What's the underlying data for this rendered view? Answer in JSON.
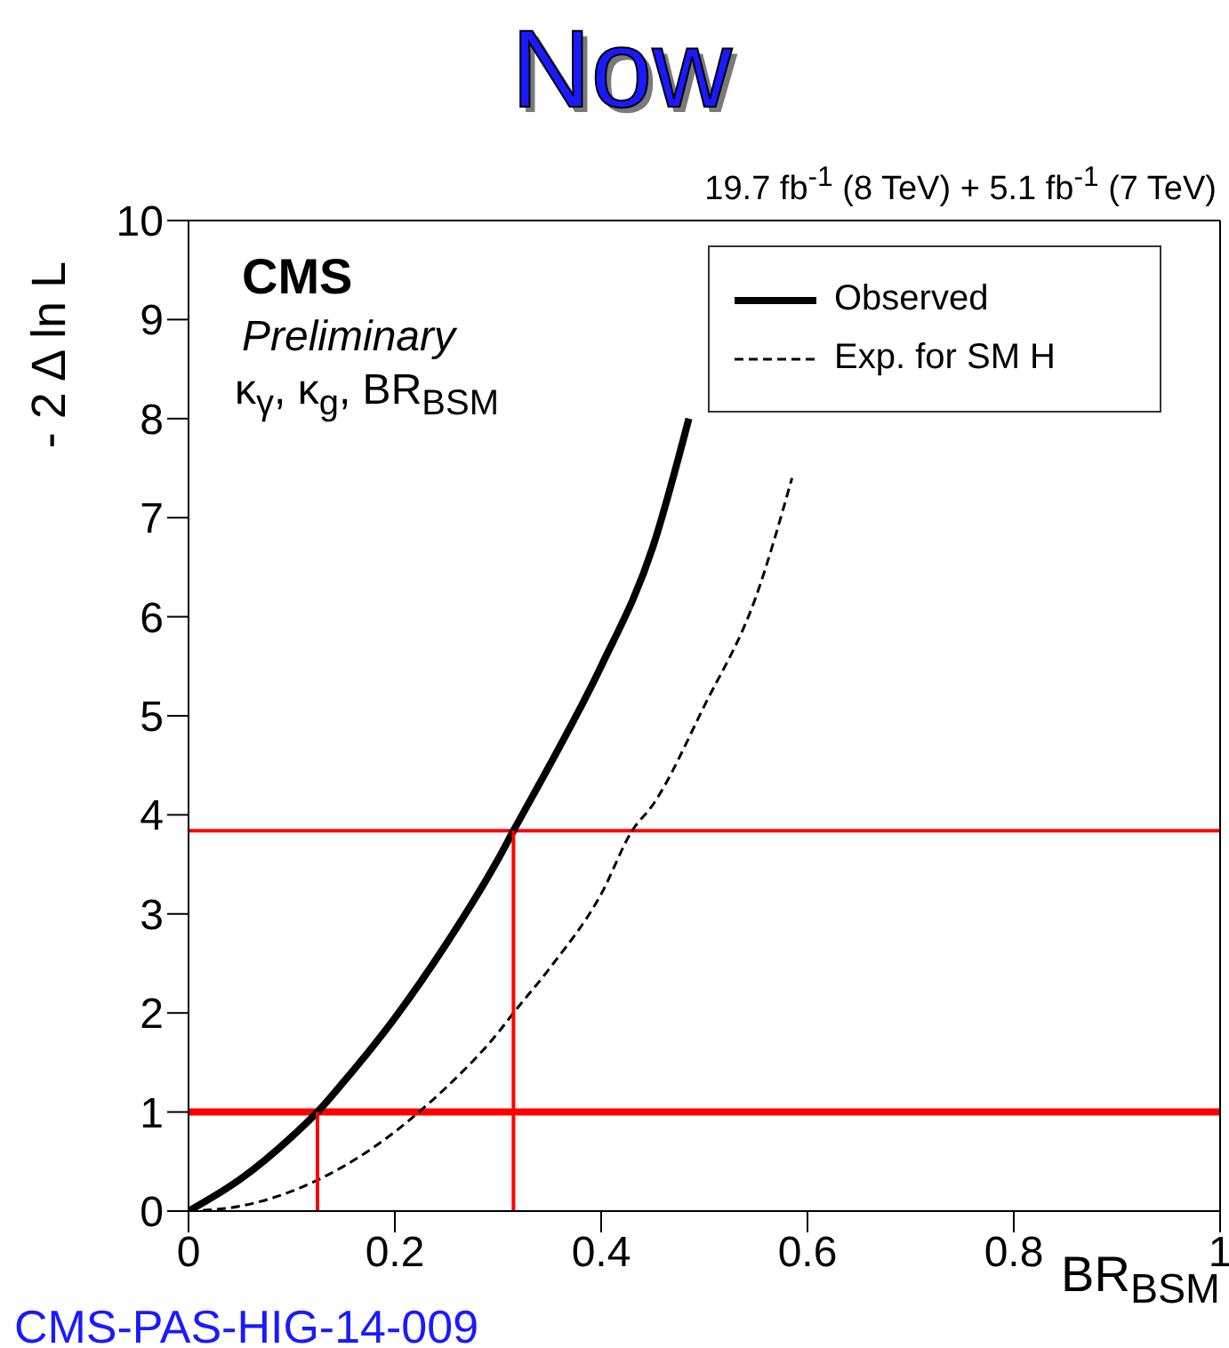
{
  "chart_data": {
    "type": "line",
    "title": "Now",
    "subtitle": "19.7 fb$^{-1}$ (8 TeV) +  5.1 fb$^{-1}$ (7 TeV)",
    "xlabel": "BR$_{BSM}$",
    "ylabel": "- 2 Δ ln L",
    "annotations": [
      "CMS",
      "Preliminary",
      "κ$_{γ}$, κ$_{g}$, BR$_{BSM}$",
      "CMS-PAS-HIG-14-009"
    ],
    "series": [
      {
        "name": "Observed",
        "color": "#000000",
        "line_style": "solid",
        "x": [
          0,
          0.05,
          0.1,
          0.125,
          0.15,
          0.2,
          0.25,
          0.3,
          0.315,
          0.35,
          0.4,
          0.45,
          0.485
        ],
        "values": [
          0,
          0.32,
          0.75,
          1,
          1.3,
          1.95,
          2.7,
          3.55,
          3.84,
          4.5,
          5.5,
          6.7,
          8
        ]
      },
      {
        "name": "Exp. for SM H",
        "color": "#000000",
        "line_style": "dashed",
        "x": [
          0,
          0.05,
          0.1,
          0.15,
          0.2,
          0.22,
          0.25,
          0.3,
          0.315,
          0.35,
          0.4,
          0.43,
          0.45,
          0.5,
          0.55,
          0.585
        ],
        "values": [
          0,
          0.05,
          0.2,
          0.45,
          0.8,
          0.97,
          1.25,
          1.8,
          2,
          2.45,
          3.2,
          3.84,
          4.1,
          5.1,
          6.2,
          7.4
        ]
      },
      {
        "color": "#ff0000",
        "line_style": "solid",
        "x": [
          0.125,
          0.125
        ],
        "values": [
          0,
          1
        ]
      },
      {
        "color": "#ff0000",
        "line_style": "solid",
        "x": [
          0.315,
          0.315
        ],
        "values": [
          0,
          3.84
        ]
      }
    ],
    "ref_lines": [
      {
        "axis": "y",
        "value": 1,
        "color": "#ff0000"
      },
      {
        "axis": "y",
        "value": 3.84,
        "color": "#ff0000"
      }
    ],
    "xlim": [
      0,
      1
    ],
    "xticks": [
      0,
      0.2,
      0.4,
      0.6,
      0.8,
      1
    ],
    "ylim": [
      0,
      10
    ],
    "yticks": [
      0,
      1,
      2,
      3,
      4,
      5,
      6,
      7,
      8,
      9,
      10
    ],
    "legend": "top right",
    "marker": "none"
  }
}
